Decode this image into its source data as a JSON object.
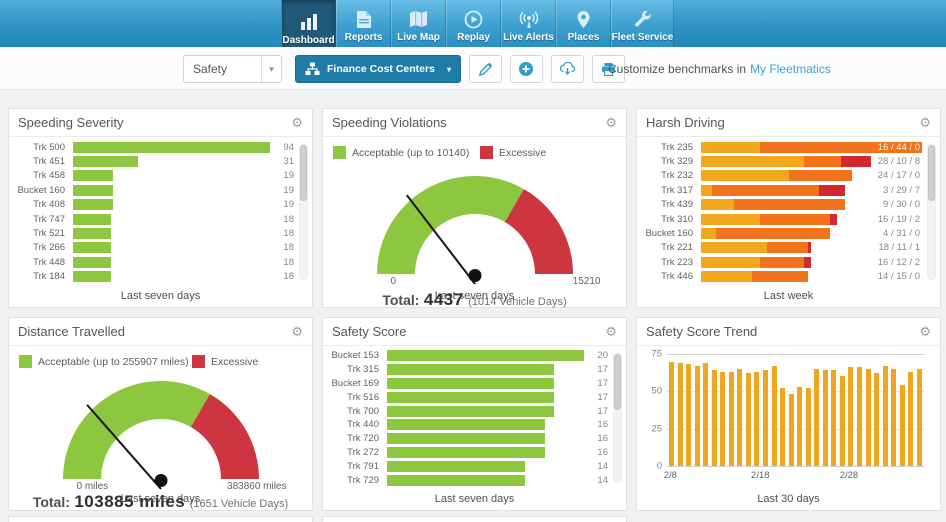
{
  "nav": {
    "tabs": [
      {
        "label": "Dashboard",
        "icon": "bar-chart-icon",
        "active": true
      },
      {
        "label": "Reports",
        "icon": "report-icon",
        "active": false
      },
      {
        "label": "Live Map",
        "icon": "map-icon",
        "active": false
      },
      {
        "label": "Replay",
        "icon": "replay-icon",
        "active": false
      },
      {
        "label": "Live Alerts",
        "icon": "broadcast-icon",
        "active": false
      },
      {
        "label": "Places",
        "icon": "map-pin-icon",
        "active": false
      },
      {
        "label": "Fleet Service",
        "icon": "wrench-icon",
        "active": false
      }
    ]
  },
  "toolbar": {
    "dashboard_select": "Safety",
    "cost_centers_button": "Finance Cost Centers",
    "benchmark_text": "Customize benchmarks in",
    "benchmark_link": "My Fleetmatics",
    "icon_buttons": [
      "edit-icon",
      "add-icon",
      "download-icon",
      "print-icon"
    ]
  },
  "colors": {
    "green": "#8dc63f",
    "red": "#cd3541",
    "amber": "#f2a71d",
    "orange": "#f3721c",
    "harsh_red": "#d2292f",
    "trend_bar": "#efa51d",
    "nav_blue": "#2f93c5",
    "active_tab": "#20587a",
    "button_blue": "#1e7ca9",
    "link_blue": "#3aa3d4"
  },
  "panels": {
    "speeding_severity": {
      "title": "Speeding Severity",
      "footer": "Last seven days",
      "chart": {
        "type": "bar",
        "max": 94,
        "bar_color": "#8dc63f",
        "rows": [
          {
            "label": "Trk 500",
            "value": 94
          },
          {
            "label": "Trk 451",
            "value": 31
          },
          {
            "label": "Trk 458",
            "value": 19
          },
          {
            "label": "Bucket 160",
            "value": 19
          },
          {
            "label": "Trk 408",
            "value": 19
          },
          {
            "label": "Trk 747",
            "value": 18
          },
          {
            "label": "Trk 521",
            "value": 18
          },
          {
            "label": "Trk 266",
            "value": 18
          },
          {
            "label": "Trk 448",
            "value": 18
          },
          {
            "label": "Trk 184",
            "value": 18
          }
        ]
      }
    },
    "speeding_violations": {
      "title": "Speeding Violations",
      "footer": "Last seven days",
      "gauge": {
        "legend_acceptable": "Acceptable (up to 10140)",
        "legend_excessive": "Excessive",
        "min": 0,
        "max": 15210,
        "acceptable_up_to": 10140,
        "value": 4437,
        "min_label": "0",
        "max_label": "15210",
        "total_label": "Total:",
        "total_value": "4437",
        "total_suffix": "(1014 Vehicle Days)"
      }
    },
    "harsh_driving": {
      "title": "Harsh Driving",
      "footer": "Last week",
      "chart": {
        "type": "stacked-bar",
        "max_total": 60,
        "colors": [
          "#f2a71d",
          "#f3721c",
          "#d2292f"
        ],
        "rows": [
          {
            "label": "Trk 235",
            "values": [
              16,
              44,
              0
            ],
            "text": "16 / 44 / 0"
          },
          {
            "label": "Trk 329",
            "values": [
              28,
              10,
              8
            ],
            "text": "28 / 10 / 8"
          },
          {
            "label": "Trk 232",
            "values": [
              24,
              17,
              0
            ],
            "text": "24 / 17 / 0"
          },
          {
            "label": "Trk 317",
            "values": [
              3,
              29,
              7
            ],
            "text": "3 / 29 / 7"
          },
          {
            "label": "Trk 439",
            "values": [
              9,
              30,
              0
            ],
            "text": "9 / 30 / 0"
          },
          {
            "label": "Trk 310",
            "values": [
              16,
              19,
              2
            ],
            "text": "16 / 19 / 2"
          },
          {
            "label": "Bucket 160",
            "values": [
              4,
              31,
              0
            ],
            "text": "4 / 31 / 0"
          },
          {
            "label": "Trk 221",
            "values": [
              18,
              11,
              1
            ],
            "text": "18 / 11 / 1"
          },
          {
            "label": "Trk 223",
            "values": [
              16,
              12,
              2
            ],
            "text": "16 / 12 / 2"
          },
          {
            "label": "Trk 446",
            "values": [
              14,
              15,
              0
            ],
            "text": "14 / 15 / 0"
          }
        ]
      }
    },
    "distance_travelled": {
      "title": "Distance Travelled",
      "footer": "Last seven days",
      "gauge": {
        "legend_acceptable": "Acceptable (up to 255907 miles)",
        "legend_excessive": "Excessive",
        "min": 0,
        "max": 383860,
        "acceptable_up_to": 255907,
        "value": 103885,
        "min_label": "0 miles",
        "max_label": "383860 miles",
        "total_label": "Total:",
        "total_value": "103885 miles",
        "total_suffix": "(1651 Vehicle Days)"
      }
    },
    "safety_score": {
      "title": "Safety Score",
      "footer": "Last seven days",
      "chart": {
        "type": "bar",
        "max": 20,
        "bar_color": "#8dc63f",
        "rows": [
          {
            "label": "Bucket 153",
            "value": 20
          },
          {
            "label": "Trk 315",
            "value": 17
          },
          {
            "label": "Bucket 169",
            "value": 17
          },
          {
            "label": "Trk 516",
            "value": 17
          },
          {
            "label": "Trk 700",
            "value": 17
          },
          {
            "label": "Trk 440",
            "value": 16
          },
          {
            "label": "Trk 720",
            "value": 16
          },
          {
            "label": "Trk 272",
            "value": 16
          },
          {
            "label": "Trk 791",
            "value": 14
          },
          {
            "label": "Trk 729",
            "value": 14
          }
        ]
      }
    },
    "safety_score_trend": {
      "title": "Safety Score Trend",
      "footer": "Last 30 days",
      "chart": {
        "type": "column",
        "ymax": 75,
        "bar_color": "#efa51d",
        "yticks": [
          75,
          50,
          25,
          0
        ],
        "xticks": [
          {
            "label": "2/8",
            "index": 0
          },
          {
            "label": "2/18",
            "index": 10
          },
          {
            "label": "2/28",
            "index": 20
          }
        ],
        "values": [
          70,
          69,
          68,
          67,
          69,
          64,
          63,
          63,
          65,
          62,
          63,
          64,
          67,
          52,
          48,
          53,
          52,
          65,
          64,
          64,
          60,
          66,
          66,
          65,
          62,
          67,
          65,
          54,
          63,
          65
        ]
      }
    }
  }
}
